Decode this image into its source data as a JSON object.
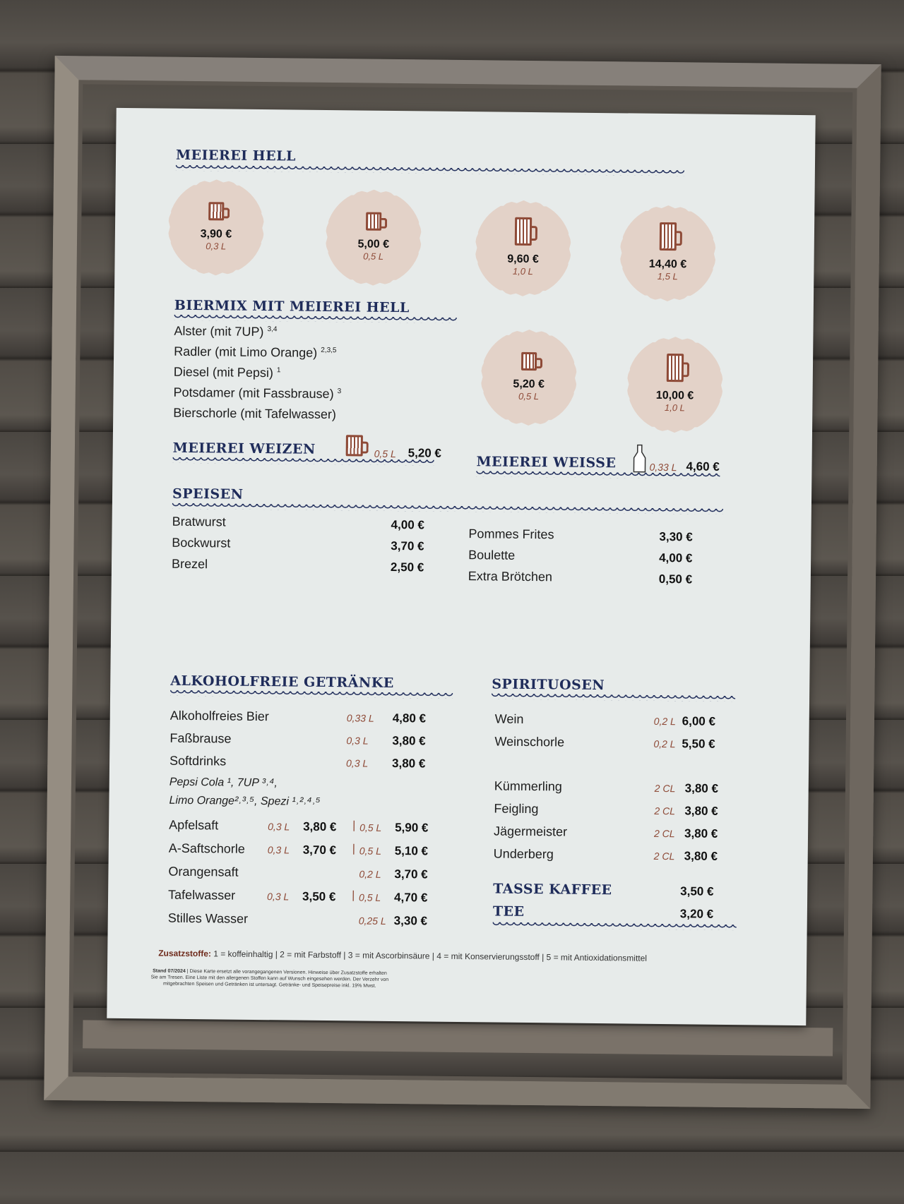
{
  "colors": {
    "heading": "#1f2c5a",
    "accent": "#8e4a37",
    "badge": "#e3d2c8",
    "board": "#e7ebea"
  },
  "hell": {
    "title": "MEIEREI HELL",
    "sizes": [
      {
        "price": "3,90 €",
        "vol": "0,3 L"
      },
      {
        "price": "5,00 €",
        "vol": "0,5 L"
      },
      {
        "price": "9,60 €",
        "vol": "1,0 L"
      },
      {
        "price": "14,40 €",
        "vol": "1,5 L"
      }
    ]
  },
  "biermix": {
    "title": "BIERMIX MIT MEIEREI HELL",
    "items": [
      {
        "name": "Alster (mit 7UP)",
        "note": "3,4"
      },
      {
        "name": "Radler (mit Limo Orange)",
        "note": "2,3,5"
      },
      {
        "name": "Diesel (mit Pepsi)",
        "note": "1"
      },
      {
        "name": "Potsdamer (mit Fassbrause)",
        "note": "3"
      },
      {
        "name": "Bierschorle (mit Tafelwasser)",
        "note": ""
      }
    ],
    "sizes": [
      {
        "price": "5,20 €",
        "vol": "0,5 L"
      },
      {
        "price": "10,00 €",
        "vol": "1,0 L"
      }
    ]
  },
  "weizen": {
    "title": "MEIEREI WEIZEN",
    "vol": "0,5 L",
    "price": "5,20 €",
    "icon": "beer-mug-icon"
  },
  "weisse": {
    "title": "MEIEREI WEISSE",
    "vol": "0,33 L",
    "price": "4,60 €",
    "icon": "bottle-icon"
  },
  "speisen": {
    "title": "SPEISEN",
    "left": [
      {
        "name": "Bratwurst",
        "price": "4,00 €"
      },
      {
        "name": "Bockwurst",
        "price": "3,70 €"
      },
      {
        "name": "Brezel",
        "price": "2,50 €"
      }
    ],
    "right": [
      {
        "name": "Pommes Frites",
        "price": "3,30 €"
      },
      {
        "name": "Boulette",
        "price": "4,00 €"
      },
      {
        "name": "Extra Brötchen",
        "price": "0,50 €"
      }
    ]
  },
  "alkoholfrei": {
    "title": "ALKOHOLFREIE GETRÄNKE",
    "simple": [
      {
        "name": "Alkoholfreies Bier",
        "vol": "0,33 L",
        "price": "4,80 €"
      },
      {
        "name": "Faßbrause",
        "vol": "0,3 L",
        "price": "3,80 €"
      },
      {
        "name": "Softdrinks",
        "vol": "0,3 L",
        "price": "3,80 €"
      }
    ],
    "softdrinks_line1": "Pepsi Cola ¹, 7UP ³˒⁴,",
    "softdrinks_line2": "Limo Orange²˒³˒⁵, Spezi ¹˒²˒⁴˒⁵",
    "double": [
      {
        "name": "Apfelsaft",
        "vol1": "0,3 L",
        "price1": "3,80 €",
        "vol2": "0,5 L",
        "price2": "5,90 €"
      },
      {
        "name": "A-Saftschorle",
        "vol1": "0,3 L",
        "price1": "3,70 €",
        "vol2": "0,5 L",
        "price2": "5,10 €"
      },
      {
        "name": "Orangensaft",
        "vol1": "",
        "price1": "",
        "vol2": "0,2 L",
        "price2": "3,70 €"
      },
      {
        "name": "Tafelwasser",
        "vol1": "0,3 L",
        "price1": "3,50 €",
        "vol2": "0,5 L",
        "price2": "4,70 €"
      },
      {
        "name": "Stilles Wasser",
        "vol1": "",
        "price1": "",
        "vol2": "0,25 L",
        "price2": "3,30 €"
      }
    ]
  },
  "spirituosen": {
    "title": "SPIRITUOSEN",
    "wine": [
      {
        "name": "Wein",
        "vol": "0,2 L",
        "price": "6,00 €"
      },
      {
        "name": "Weinschorle",
        "vol": "0,2 L",
        "price": "5,50 €"
      }
    ],
    "shots": [
      {
        "name": "Kümmerling",
        "vol": "2 CL",
        "price": "3,80 €"
      },
      {
        "name": "Feigling",
        "vol": "2 CL",
        "price": "3,80 €"
      },
      {
        "name": "Jägermeister",
        "vol": "2 CL",
        "price": "3,80 €"
      },
      {
        "name": "Underberg",
        "vol": "2 CL",
        "price": "3,80 €"
      }
    ]
  },
  "kaffee": {
    "title": "TASSE KAFFEE",
    "price": "3,50 €"
  },
  "tee": {
    "title": "TEE",
    "price": "3,20 €"
  },
  "footer": {
    "label": "Zusatzstoffe:",
    "legend": "1 = koffeinhaltig | 2 = mit Farbstoff | 3 = mit Ascorbinsäure | 4 = mit Konservierungsstoff | 5 = mit Antioxidationsmittel",
    "stand": "Stand 07/2024",
    "fine": "| Diese Karte ersetzt alle vorangegangenen Versionen. Hinweise über Zusatzstoffe erhalten Sie am Tresen. Eine Liste mit den allergenen Stoffen kann auf Wunsch eingesehen werden. Der Verzehr von mitgebrachten Speisen und Getränken ist untersagt. Getränke- und Speisepreise inkl. 19% Mwst."
  }
}
